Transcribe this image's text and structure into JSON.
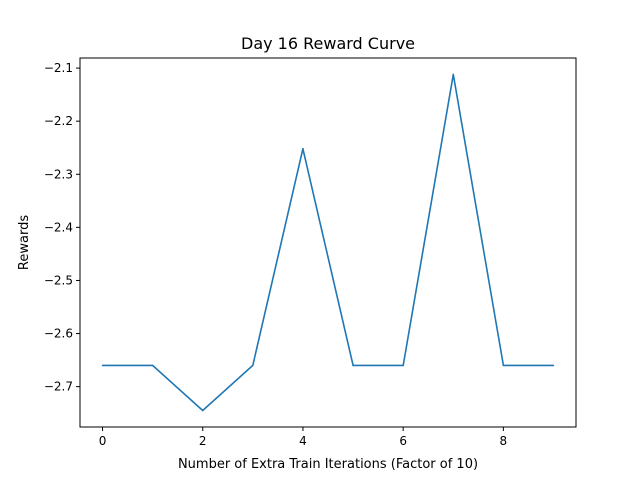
{
  "chart_data": {
    "type": "line",
    "title": "Day 16 Reward Curve",
    "xlabel": "Number of Extra Train Iterations (Factor of 10)",
    "ylabel": "Rewards",
    "x": [
      0,
      1,
      2,
      3,
      4,
      5,
      6,
      7,
      8,
      9
    ],
    "series": [
      {
        "values": [
          -2.66,
          -2.66,
          -2.745,
          -2.66,
          -2.252,
          -2.66,
          -2.66,
          -2.112,
          -2.66,
          -2.66
        ],
        "color": "#1f77b4"
      }
    ],
    "xlim": [
      -0.45,
      9.45
    ],
    "ylim": [
      -2.776,
      -2.081
    ],
    "xticks": [
      0,
      2,
      4,
      6,
      8
    ],
    "xtick_labels": [
      "0",
      "2",
      "4",
      "6",
      "8"
    ],
    "yticks": [
      -2.7,
      -2.6,
      -2.5,
      -2.4,
      -2.3,
      -2.2,
      -2.1
    ],
    "ytick_labels": [
      "−2.7",
      "−2.6",
      "−2.5",
      "−2.4",
      "−2.3",
      "−2.2",
      "−2.1"
    ],
    "grid": false,
    "legend": "none"
  }
}
